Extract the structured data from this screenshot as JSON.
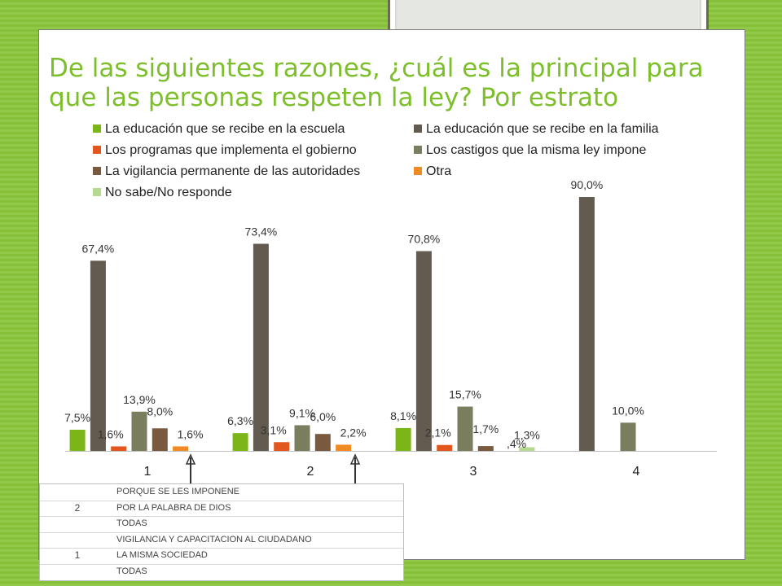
{
  "slide": {
    "title": "De las siguientes razones, ¿cuál es la principal para que las personas respeten la ley? Por estrato"
  },
  "chart_data": {
    "type": "bar",
    "categories": [
      "1",
      "2",
      "3",
      "4"
    ],
    "series": [
      {
        "name": "La educación que se recibe en la escuela",
        "color": "#7cb518",
        "values": [
          7.5,
          6.3,
          8.1,
          null
        ],
        "labels": [
          "7,5%",
          "6,3%",
          "8,1%",
          ""
        ]
      },
      {
        "name": "La educación que se recibe en la familia",
        "color": "#635b50",
        "values": [
          67.4,
          73.4,
          70.8,
          90.0
        ],
        "labels": [
          "67,4%",
          "73,4%",
          "70,8%",
          "90,0%"
        ]
      },
      {
        "name": "Los programas que implementa el gobierno",
        "color": "#e2571e",
        "values": [
          1.6,
          3.1,
          2.1,
          null
        ],
        "labels": [
          "1,6%",
          "3,1%",
          "2,1%",
          ""
        ]
      },
      {
        "name": "Los castigos que la misma ley impone",
        "color": "#7b7d5f",
        "values": [
          13.9,
          9.1,
          15.7,
          10.0
        ],
        "labels": [
          "13,9%",
          "9,1%",
          "15,7%",
          "10,0%"
        ]
      },
      {
        "name": "La vigilancia permanente de las autoridades",
        "color": "#7a5a3e",
        "values": [
          8.0,
          6.0,
          1.7,
          null
        ],
        "labels": [
          "8,0%",
          "6,0%",
          "1,7%",
          ""
        ]
      },
      {
        "name": "Otra",
        "color": "#f08a24",
        "values": [
          1.6,
          2.2,
          null,
          null
        ],
        "labels": [
          "1,6%",
          "2,2%",
          "",
          ""
        ]
      },
      {
        "name": "No sabe/No responde",
        "color": "#b5d98e",
        "values": [
          null,
          null,
          1.3,
          null
        ],
        "labels": [
          "",
          "",
          "1,3%",
          ""
        ]
      }
    ],
    "extra_labels": [
      ",4%"
    ],
    "ylim": [
      0,
      100
    ],
    "grid": false,
    "legend_position": "top"
  },
  "notes_table": {
    "groups": [
      {
        "key": "2",
        "rows": [
          "PORQUE SE LES IMPONENE",
          "POR LA PALABRA DE DIOS",
          "TODAS"
        ]
      },
      {
        "key": "1",
        "rows": [
          "VIGILANCIA Y CAPACITACION AL CIUDADANO",
          "LA MISMA SOCIEDAD",
          "TODAS"
        ]
      }
    ]
  }
}
